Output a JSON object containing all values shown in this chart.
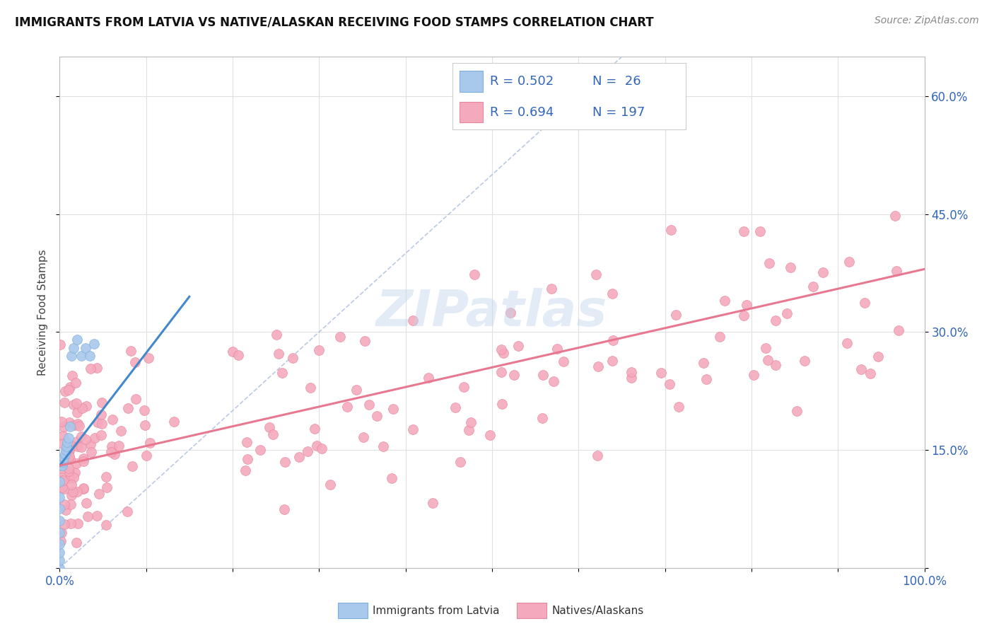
{
  "title": "IMMIGRANTS FROM LATVIA VS NATIVE/ALASKAN RECEIVING FOOD STAMPS CORRELATION CHART",
  "source_text": "Source: ZipAtlas.com",
  "ylabel": "Receiving Food Stamps",
  "blue_R": 0.502,
  "blue_N": 26,
  "pink_R": 0.694,
  "pink_N": 197,
  "blue_color": "#A8C8EC",
  "pink_color": "#F4AABC",
  "blue_edge_color": "#7EB0DC",
  "pink_edge_color": "#E888A0",
  "blue_line_color": "#4488CC",
  "pink_line_color": "#E87890",
  "diag_color": "#AABBDD",
  "legend_label_blue": "Immigrants from Latvia",
  "legend_label_pink": "Natives/Alaskans",
  "blue_line_x0": 0.0,
  "blue_line_y0": 0.13,
  "blue_line_x1": 0.15,
  "blue_line_y1": 0.345,
  "pink_line_x0": 0.0,
  "pink_line_y0": 0.13,
  "pink_line_x1": 1.0,
  "pink_line_y1": 0.38,
  "xlim": [
    0.0,
    1.0
  ],
  "ylim": [
    0.0,
    0.65
  ],
  "xtick_positions": [
    0.0,
    0.1,
    0.2,
    0.3,
    0.4,
    0.5,
    0.6,
    0.7,
    0.8,
    0.9,
    1.0
  ],
  "ytick_positions": [
    0.0,
    0.15,
    0.3,
    0.45,
    0.6
  ],
  "ytick_labels": [
    "",
    "15.0%",
    "30.0%",
    "45.0%",
    "60.0%"
  ],
  "grid_color": "#E0E0E0",
  "watermark_color": "#C0D4EC",
  "title_fontsize": 12,
  "tick_fontsize": 12,
  "ylabel_fontsize": 11
}
